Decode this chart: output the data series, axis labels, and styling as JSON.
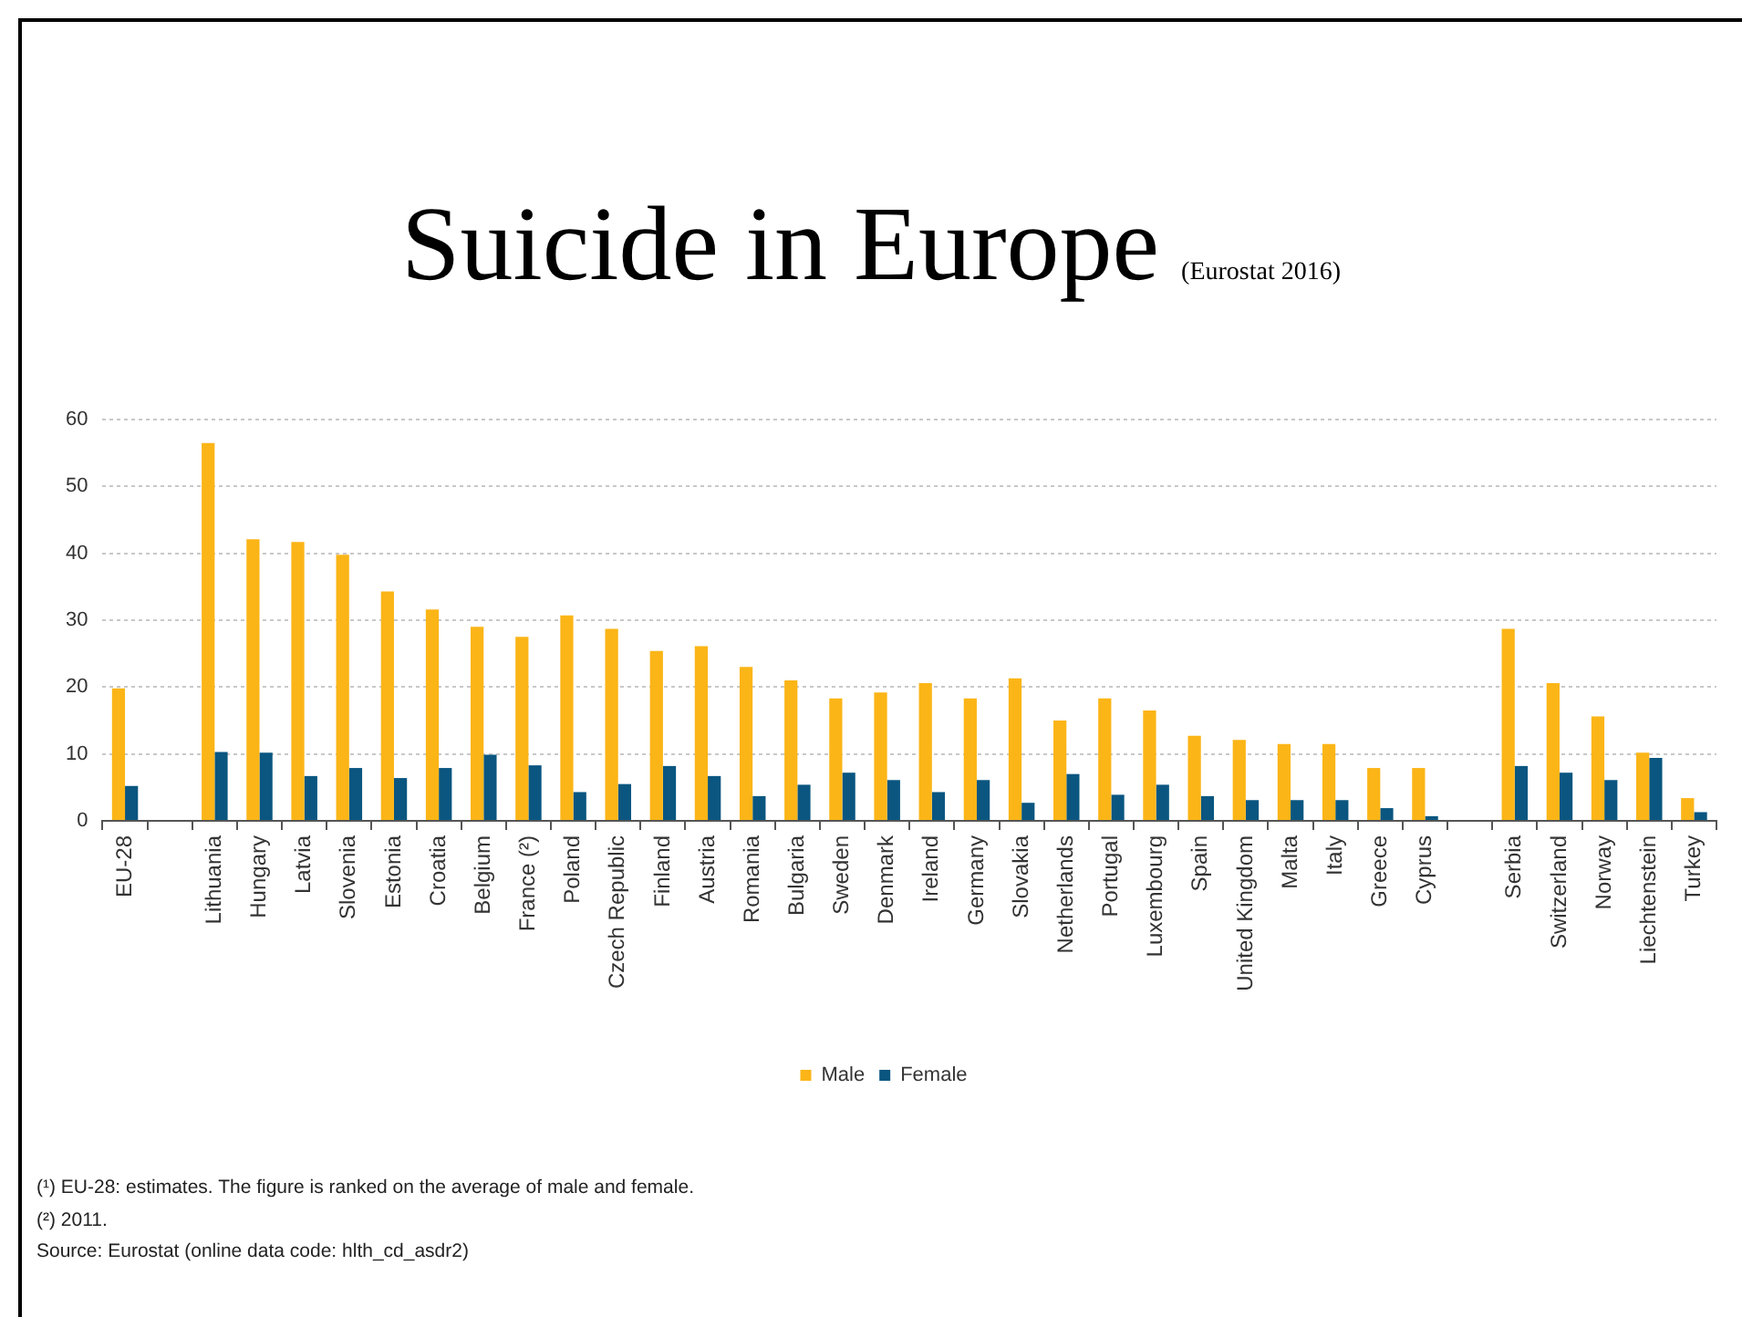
{
  "chart_data": {
    "type": "bar",
    "title": "Suicide in Europe",
    "subtitle": "(Eurostat 2016)",
    "categories": [
      "EU-28",
      null,
      "Lithuania",
      "Hungary",
      "Latvia",
      "Slovenia",
      "Estonia",
      "Croatia",
      "Belgium",
      "France (²)",
      "Poland",
      "Czech Republic",
      "Finland",
      "Austria",
      "Romania",
      "Bulgaria",
      "Sweden",
      "Denmark",
      "Ireland",
      "Germany",
      "Slovakia",
      "Netherlands",
      "Portugal",
      "Luxembourg",
      "Spain",
      "United Kingdom",
      "Malta",
      "Italy",
      "Greece",
      "Cyprus",
      null,
      "Serbia",
      "Switzerland",
      "Norway",
      "Liechtenstein",
      "Turkey"
    ],
    "series": [
      {
        "name": "Male",
        "color": "#fbb517",
        "values": [
          19.8,
          null,
          56.5,
          42.1,
          41.7,
          39.8,
          34.3,
          31.6,
          29.0,
          27.5,
          30.7,
          28.7,
          25.4,
          26.1,
          23.0,
          21.0,
          18.3,
          19.2,
          20.6,
          18.3,
          21.3,
          15.0,
          18.3,
          16.5,
          12.7,
          12.1,
          11.5,
          11.5,
          7.9,
          7.9,
          null,
          28.7,
          20.6,
          15.6,
          10.2,
          3.4
        ]
      },
      {
        "name": "Female",
        "color": "#0a5680",
        "values": [
          5.2,
          null,
          10.3,
          10.2,
          6.7,
          7.9,
          6.4,
          7.9,
          9.9,
          8.3,
          4.3,
          5.5,
          8.2,
          6.7,
          3.7,
          5.4,
          7.2,
          6.1,
          4.3,
          6.1,
          2.7,
          7.0,
          3.9,
          5.4,
          3.7,
          3.1,
          3.1,
          3.1,
          1.9,
          0.7,
          null,
          8.2,
          7.2,
          6.1,
          9.4,
          1.3
        ]
      }
    ],
    "ylim": [
      0,
      60
    ],
    "yticks": [
      0,
      10,
      20,
      30,
      40,
      50,
      60
    ],
    "grid": "y",
    "legend": "bottom",
    "annotations": [
      "(¹) EU-28: estimates. The figure is ranked on the average of male and female.",
      "(²) 2011.",
      "Source: Eurostat (online data code: hlth_cd_asdr2)"
    ]
  }
}
